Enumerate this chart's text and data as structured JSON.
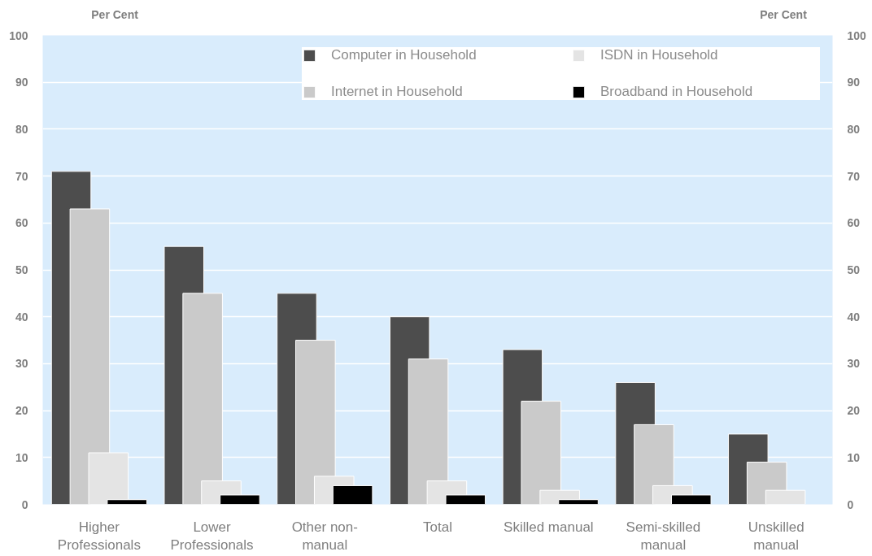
{
  "chart_data": {
    "type": "bar",
    "ylabel": "Per Cent",
    "y2label": "Per Cent",
    "categories": [
      "Higher\nProfessionals",
      "Lower\nProfessionals",
      "Other non-\nmanual",
      "Total",
      "Skilled  manual",
      "Semi-skilled\nmanual",
      "Unskilled\nmanual"
    ],
    "series": [
      {
        "name": "Computer in Household",
        "color": "#4d4d4d",
        "values": [
          71,
          55,
          45,
          40,
          33,
          26,
          15
        ]
      },
      {
        "name": "Internet in Household",
        "color": "#cacaca",
        "values": [
          63,
          45,
          35,
          31,
          22,
          17,
          9
        ]
      },
      {
        "name": "ISDN in Household",
        "color": "#e4e4e4",
        "values": [
          11,
          5,
          6,
          5,
          3,
          4,
          3
        ]
      },
      {
        "name": "Broadband in Household",
        "color": "#000000",
        "values": [
          1,
          2,
          4,
          2,
          1,
          2,
          null
        ]
      }
    ],
    "ylim": [
      0,
      100
    ],
    "yticks": [
      0,
      10,
      20,
      30,
      40,
      50,
      60,
      70,
      80,
      90,
      100
    ],
    "y2lim": [
      0,
      100
    ],
    "y2ticks": [
      0,
      10,
      20,
      30,
      40,
      50,
      60,
      70,
      80,
      90,
      100
    ],
    "grid": "y",
    "legend": "top right"
  }
}
